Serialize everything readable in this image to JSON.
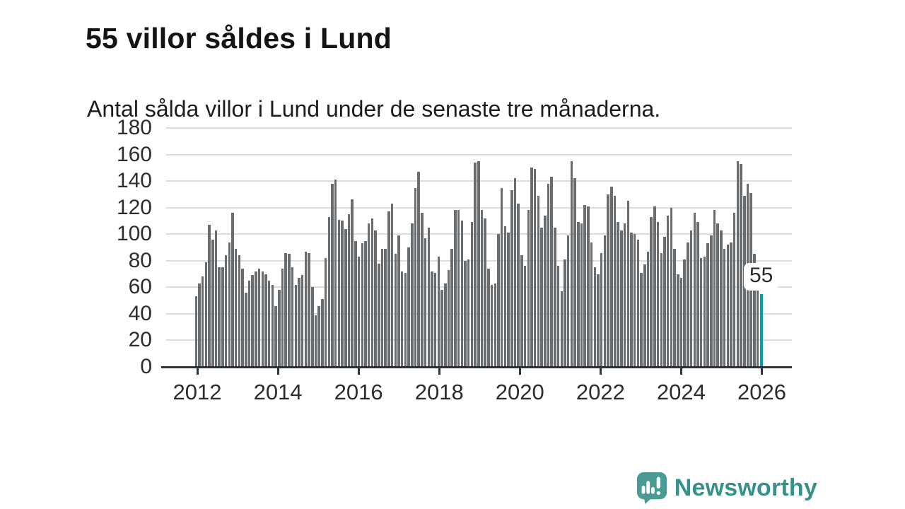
{
  "header": {
    "title": "55 villor såldes i Lund",
    "subtitle": "Antal sålda villor i Lund under de senaste tre månaderna."
  },
  "chart_data": {
    "type": "bar",
    "title": "55 villor såldes i Lund",
    "subtitle": "Antal sålda villor i Lund under de senaste tre månaderna.",
    "frequency": "monthly",
    "x_range": [
      "2012",
      "2026"
    ],
    "x_tick_labels": [
      "2012",
      "2014",
      "2016",
      "2018",
      "2020",
      "2022",
      "2024",
      "2026"
    ],
    "y_ticks": [
      0,
      20,
      40,
      60,
      80,
      100,
      120,
      140,
      160,
      180
    ],
    "ylim": [
      0,
      180
    ],
    "grid": "horizontal",
    "legend": "none",
    "bar_color": "#696d6f",
    "series": [
      {
        "name": "Antal sålda villor i Lund, rullande tre månader",
        "values": [
          53,
          63,
          68,
          79,
          107,
          96,
          103,
          75,
          75,
          84,
          94,
          116,
          89,
          84,
          74,
          56,
          65,
          69,
          72,
          74,
          72,
          70,
          65,
          62,
          46,
          58,
          74,
          86,
          85,
          75,
          62,
          67,
          69,
          87,
          86,
          60,
          39,
          46,
          51,
          82,
          113,
          138,
          141,
          111,
          110,
          104,
          115,
          126,
          95,
          83,
          93,
          95,
          108,
          112,
          103,
          78,
          89,
          89,
          117,
          123,
          85,
          99,
          72,
          71,
          90,
          108,
          135,
          147,
          116,
          97,
          105,
          72,
          71,
          83,
          58,
          63,
          73,
          89,
          118,
          118,
          110,
          80,
          81,
          109,
          154,
          155,
          118,
          112,
          74,
          62,
          63,
          100,
          135,
          106,
          101,
          133,
          142,
          123,
          84,
          76,
          118,
          150,
          149,
          129,
          105,
          114,
          138,
          143,
          105,
          76,
          57,
          81,
          99,
          155,
          142,
          109,
          108,
          122,
          121,
          94,
          75,
          70,
          86,
          99,
          130,
          136,
          129,
          109,
          103,
          108,
          125,
          101,
          100,
          96,
          71,
          77,
          87,
          113,
          121,
          109,
          86,
          98,
          114,
          120,
          89,
          70,
          67,
          81,
          94,
          103,
          116,
          109,
          82,
          83,
          93,
          99,
          118,
          108,
          103,
          89,
          92,
          94,
          116,
          155,
          153,
          129,
          138,
          131,
          85,
          65,
          55
        ]
      }
    ],
    "highlight": {
      "index": 170,
      "value": 55,
      "label": "55",
      "color": "#00a1a9"
    }
  },
  "footer": {
    "brand": "Newsworthy",
    "brand_color": "#37918b",
    "logo_icon_color": "#4a9b95",
    "logo_icon": "newsworthy-chart-bubble-icon"
  },
  "colors": {
    "background": "#ffffff",
    "bar": "#696d6f",
    "highlight_bar": "#00a1a9",
    "gridline": "#dcdcdc",
    "axis": "#2f3337",
    "text": "#1a1a1a"
  }
}
